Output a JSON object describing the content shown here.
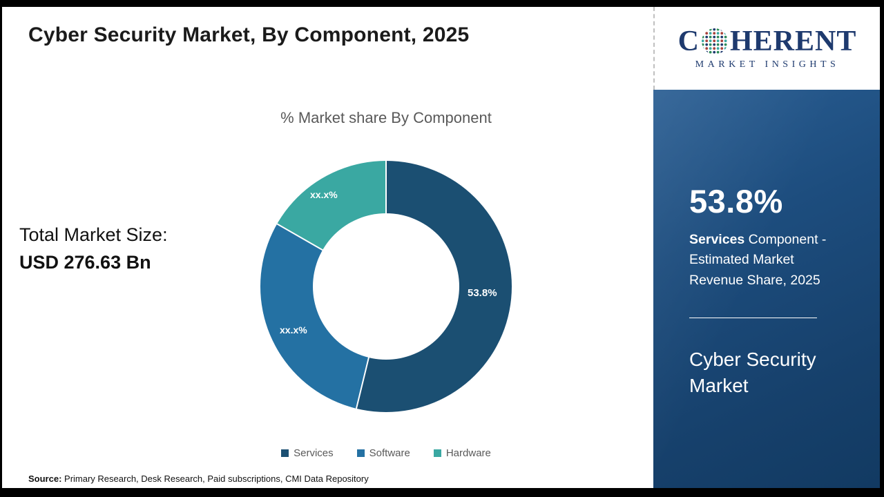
{
  "page": {
    "title": "Cyber Security Market, By Component, 2025",
    "source_label": "Source:",
    "source_text": " Primary Research, Desk Research, Paid subscriptions, CMI Data Repository"
  },
  "left_stats": {
    "total_label": "Total Market Size:",
    "total_value": "USD 276.63 Bn"
  },
  "chart_data": {
    "type": "pie",
    "variant": "donut",
    "title": "% Market share By Component",
    "categories": [
      "Services",
      "Software",
      "Hardware"
    ],
    "values": [
      53.8,
      29.5,
      16.7
    ],
    "data_labels": [
      "53.8%",
      "xx.x%",
      "xx.x%"
    ],
    "colors": [
      "#1b4f72",
      "#2471a3",
      "#3aa8a2"
    ],
    "legend_position": "bottom",
    "start_angle_deg": 0,
    "direction": "clockwise"
  },
  "logo": {
    "part1": "C",
    "part2": "HERENT",
    "subtitle": "MARKET INSIGHTS",
    "brand_color": "#1e3a6e"
  },
  "panel": {
    "stat": "53.8%",
    "desc_bold": "Services",
    "desc_rest": " Component - Estimated Market Revenue Share, 2025",
    "product": "Cyber Security Market",
    "background_color": "#1d4d7e"
  }
}
